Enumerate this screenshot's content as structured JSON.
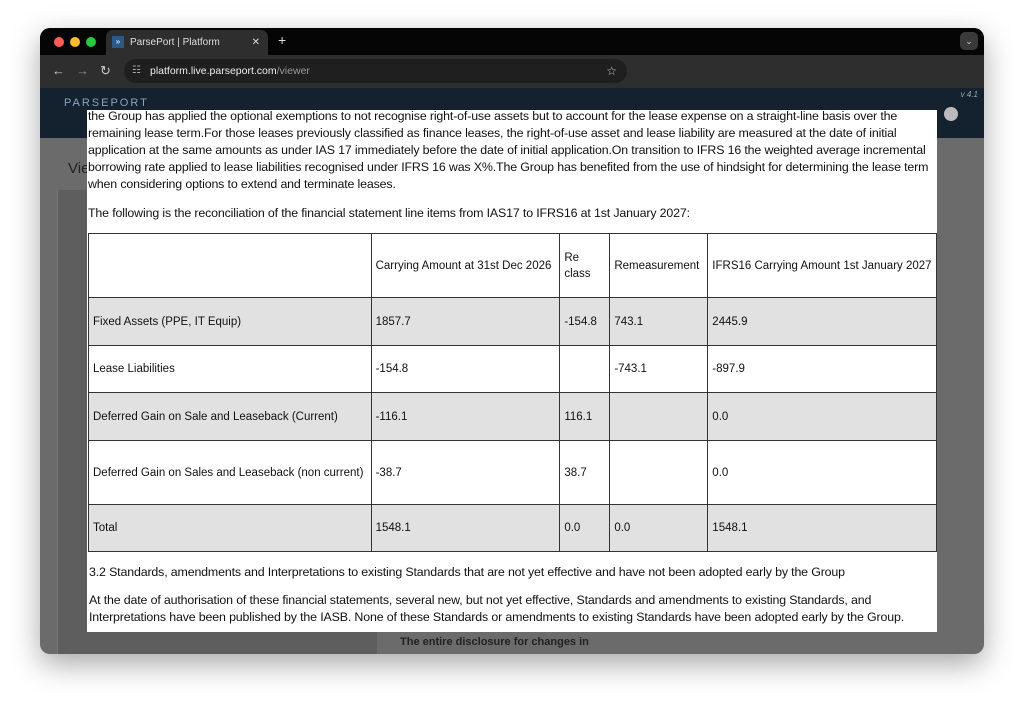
{
  "browser": {
    "tab_title": "ParsePort | Platform",
    "url_host": "platform.live.parseport.com",
    "url_path": "/viewer",
    "favicon": "parseport-icon"
  },
  "app": {
    "logo": "PARSEPORT",
    "version": "v 4.1",
    "background_title": "Vie",
    "background_note": "The entire disclosure for changes in"
  },
  "modal": {
    "paragraph1": "the Group has applied the optional exemptions to not recognise right-of-use assets but to account for the lease expense on a straight-line basis over the remaining lease term.For those leases previously classified as finance leases, the right-of-use asset and lease liability are measured at the date of initial application at the same amounts as under IAS 17 immediately before the date of initial application.On transition to IFRS 16 the weighted average incremental borrowing rate applied to lease liabilities recognised under IFRS 16 was X%.The Group has benefited from the use of hindsight for determining the lease term when considering options to extend and terminate leases.",
    "paragraph2": "The following is the reconciliation of the financial statement line items from IAS17 to IFRS16 at 1st January 2027:",
    "table": {
      "headers": [
        "",
        "Carrying Amount at 31st Dec 2026",
        "Re class",
        "Remeasurement",
        "IFRS16 Carrying Amount 1st January 2027"
      ],
      "rows": [
        [
          "Fixed Assets (PPE, IT Equip)",
          "1857.7",
          "-154.8",
          "743.1",
          "2445.9"
        ],
        [
          "Lease Liabilities",
          "-154.8",
          "",
          "-743.1",
          "-897.9"
        ],
        [
          "Deferred Gain on Sale and Leaseback (Current)",
          "-116.1",
          "116.1",
          "",
          "0.0"
        ],
        [
          "Deferred Gain on Sales and Leaseback (non current)",
          "-38.7",
          "38.7",
          "",
          "0.0"
        ],
        [
          "Total",
          "1548.1",
          "0.0",
          "0.0",
          "1548.1"
        ]
      ]
    },
    "heading3": "3.2 Standards, amendments and Interpretations to existing Standards that are not yet effective and have not been adopted early by the Group",
    "paragraph4": "At the date of authorisation of these financial statements, several new, but not yet effective, Standards and amendments to existing Standards, and Interpretations have been published by the IASB. None of these Standards or amendments to existing Standards have been adopted early by the Group."
  }
}
